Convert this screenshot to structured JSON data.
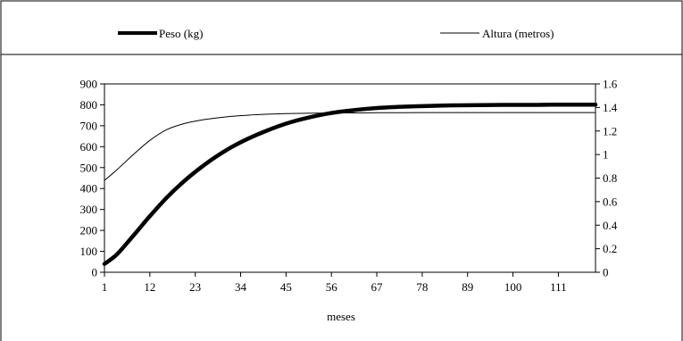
{
  "chart_data": {
    "type": "line",
    "xlabel": "meses",
    "x_ticks": [
      "1",
      "12",
      "23",
      "34",
      "45",
      "56",
      "67",
      "78",
      "89",
      "100",
      "111"
    ],
    "xlim": [
      1,
      120
    ],
    "y_left": {
      "ticks": [
        "0",
        "100",
        "200",
        "300",
        "400",
        "500",
        "600",
        "700",
        "800",
        "900"
      ],
      "ylim": [
        0,
        900
      ]
    },
    "y_right": {
      "ticks": [
        "0",
        "0.2",
        "0.4",
        "0.6",
        "0.8",
        "1",
        "1.2",
        "1.4",
        "1.6"
      ],
      "ylim": [
        0,
        1.6
      ]
    },
    "legend_position": "top",
    "grid": false,
    "series": [
      {
        "name": "Peso (kg)",
        "axis": "left",
        "color": "#000000",
        "style": "thick",
        "x": [
          1,
          4,
          8,
          12,
          16,
          20,
          24,
          28,
          32,
          36,
          40,
          45,
          50,
          56,
          62,
          67,
          72,
          78,
          84,
          89,
          95,
          100,
          106,
          111,
          116,
          120
        ],
        "values": [
          40,
          85,
          175,
          268,
          355,
          430,
          495,
          552,
          600,
          640,
          674,
          710,
          737,
          761,
          776,
          785,
          790,
          794,
          797,
          798,
          799,
          800,
          800,
          801,
          801,
          801
        ]
      },
      {
        "name": "Altura (metros)",
        "axis": "right",
        "color": "#000000",
        "style": "thin",
        "x": [
          1,
          4,
          8,
          12,
          16,
          20,
          24,
          28,
          32,
          36,
          40,
          45,
          50,
          56,
          62,
          67,
          72,
          78,
          89,
          100,
          111,
          120
        ],
        "values": [
          0.78,
          0.87,
          1.0,
          1.12,
          1.21,
          1.26,
          1.29,
          1.31,
          1.325,
          1.335,
          1.342,
          1.348,
          1.351,
          1.353,
          1.354,
          1.355,
          1.355,
          1.356,
          1.356,
          1.356,
          1.356,
          1.356
        ]
      }
    ]
  }
}
